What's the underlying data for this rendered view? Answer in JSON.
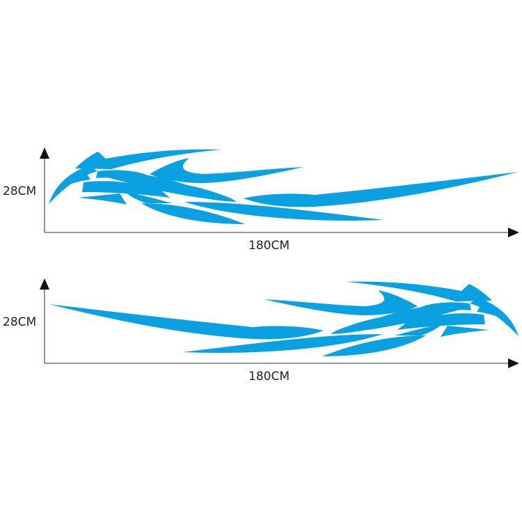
{
  "colors": {
    "decal": "#0aa1e2",
    "axis": "#777777",
    "arrowhead": "#111111"
  },
  "figures": [
    {
      "height_label": "28CM",
      "width_label": "180CM",
      "orientation": "facing-left"
    },
    {
      "height_label": "28CM",
      "width_label": "180CM",
      "orientation": "facing-right"
    }
  ]
}
